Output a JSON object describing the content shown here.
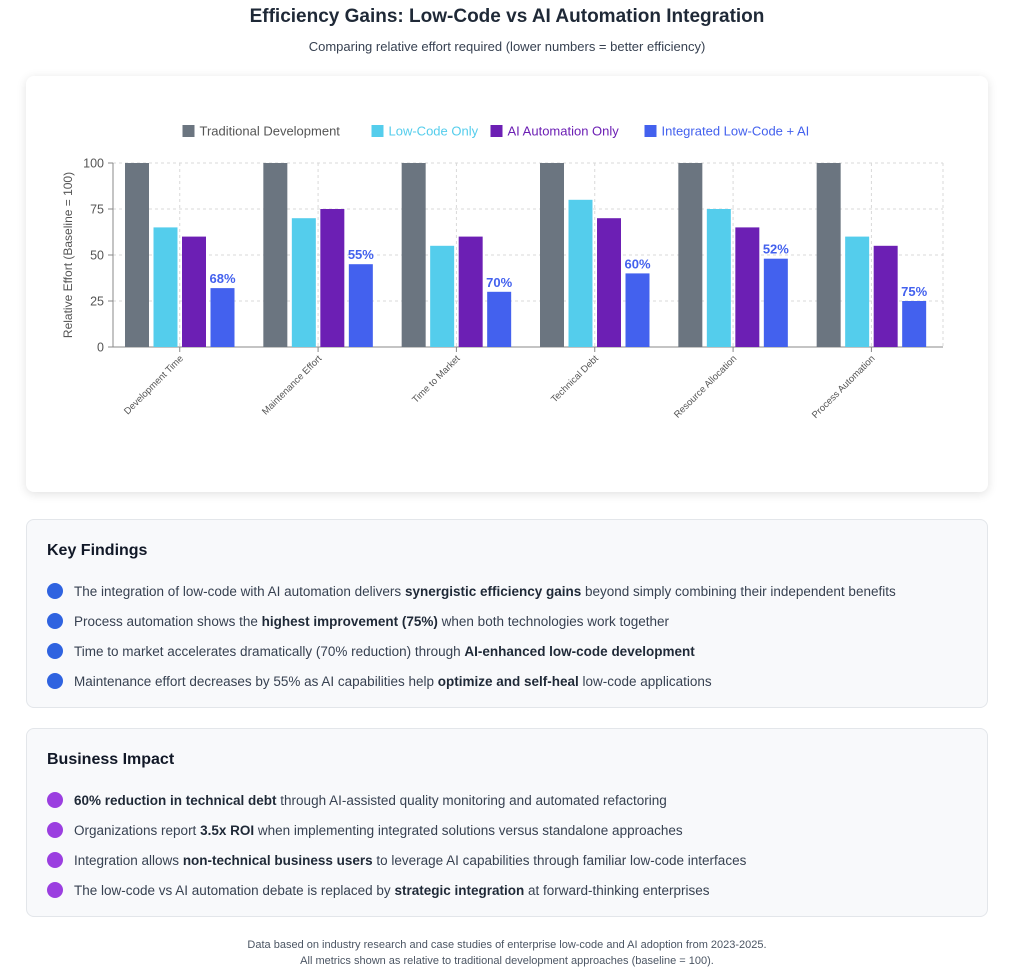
{
  "header": {
    "title": "Efficiency Gains: Low-Code vs AI Automation Integration",
    "subtitle": "Comparing relative effort required (lower numbers = better efficiency)"
  },
  "chart_data": {
    "type": "bar",
    "ylabel": "Relative Effort (Baseline = 100)",
    "xlabel": "",
    "ylim": [
      0,
      100
    ],
    "yticks": [
      0,
      25,
      50,
      75,
      100
    ],
    "grid": true,
    "legend_position": "top-center",
    "categories": [
      "Development Time",
      "Maintenance Effort",
      "Time to Market",
      "Technical Debt",
      "Resource Allocation",
      "Process Automation"
    ],
    "series": [
      {
        "name": "Traditional Development",
        "color": "#6b7580",
        "values": [
          100,
          100,
          100,
          100,
          100,
          100
        ]
      },
      {
        "name": "Low-Code Only",
        "color": "#54cdec",
        "values": [
          65,
          70,
          55,
          80,
          75,
          60
        ]
      },
      {
        "name": "AI Automation Only",
        "color": "#6c1fb4",
        "values": [
          60,
          75,
          60,
          70,
          65,
          55
        ]
      },
      {
        "name": "Integrated Low-Code + AI",
        "color": "#4361ee",
        "values": [
          32,
          45,
          30,
          40,
          48,
          25
        ]
      }
    ],
    "annotations": [
      "68%",
      "55%",
      "70%",
      "60%",
      "52%",
      "75%"
    ],
    "annotation_color": "#4361ee"
  },
  "key_findings": {
    "title": "Key Findings",
    "dot_color": "#2f63e0",
    "items": [
      {
        "pre": "The integration of low-code with AI automation delivers ",
        "bold": "synergistic efficiency gains",
        "post": " beyond simply combining their independent benefits"
      },
      {
        "pre": "Process automation shows the ",
        "bold": "highest improvement (75%)",
        "post": " when both technologies work together"
      },
      {
        "pre": "Time to market accelerates dramatically (70% reduction) through ",
        "bold": "AI-enhanced low-code development",
        "post": ""
      },
      {
        "pre": "Maintenance effort decreases by 55% as AI capabilities help ",
        "bold": "optimize and self-heal",
        "post": " low-code applications"
      }
    ]
  },
  "business_impact": {
    "title": "Business Impact",
    "dot_color": "#9b3fe0",
    "items": [
      {
        "pre": "",
        "bold": "60% reduction in technical debt",
        "post": " through AI-assisted quality monitoring and automated refactoring"
      },
      {
        "pre": "Organizations report ",
        "bold": "3.5x ROI",
        "post": " when implementing integrated solutions versus standalone approaches"
      },
      {
        "pre": "Integration allows ",
        "bold": "non-technical business users",
        "post": " to leverage AI capabilities through familiar low-code interfaces"
      },
      {
        "pre": "The low-code vs AI automation debate is replaced by ",
        "bold": "strategic integration",
        "post": " at forward-thinking enterprises"
      }
    ]
  },
  "footer": {
    "line1": "Data based on industry research and case studies of enterprise low-code and AI adoption from 2023-2025.",
    "line2": "All metrics shown as relative to traditional development approaches (baseline = 100)."
  }
}
